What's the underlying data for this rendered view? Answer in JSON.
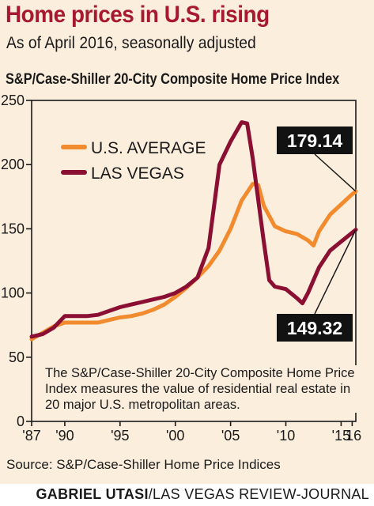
{
  "header": {
    "title": "Home prices in U.S. rising",
    "subtitle": "As of April 2016, seasonally adjusted",
    "index_title": "S&P/Case-Shiller 20-City Composite Home Price Index"
  },
  "note": "The S&P/Case-Shiller 20-City Composite Home Price Index measures the value of residential real estate in 20 major U.S. metropolitan areas.",
  "source": "Source: S&P/Case-Shiller Home Price Indices",
  "credit": {
    "name": "GABRIEL UTASI",
    "outlet": "/LAS VEGAS REVIEW-JOURNAL"
  },
  "chart_data": {
    "type": "line",
    "title": "S&P/Case-Shiller 20-City Composite Home Price Index",
    "xlabel": "",
    "ylabel": "",
    "ylim": [
      0,
      250
    ],
    "yticks": [
      0,
      50,
      100,
      150,
      200,
      250
    ],
    "xlim": [
      1987,
      2016.33
    ],
    "xticks": [
      {
        "value": 1987,
        "label": "'87"
      },
      {
        "value": 1990,
        "label": "'90"
      },
      {
        "value": 1995,
        "label": "'95"
      },
      {
        "value": 2000,
        "label": "'00"
      },
      {
        "value": 2005,
        "label": "'05"
      },
      {
        "value": 2010,
        "label": "'10"
      },
      {
        "value": 2015,
        "label": "'15"
      },
      {
        "value": 2016,
        "label": "'16"
      }
    ],
    "grid": false,
    "legend_position": "top-left",
    "series": [
      {
        "name": "U.S. AVERAGE",
        "color": "#f28a2e",
        "end_label": "179.14",
        "points": [
          [
            1987.0,
            64
          ],
          [
            1988.0,
            69
          ],
          [
            1989.0,
            74
          ],
          [
            1990.0,
            77
          ],
          [
            1991.0,
            77
          ],
          [
            1992.0,
            77
          ],
          [
            1993.0,
            77
          ],
          [
            1994.0,
            79
          ],
          [
            1995.0,
            81
          ],
          [
            1996.0,
            82
          ],
          [
            1997.0,
            84
          ],
          [
            1998.0,
            87
          ],
          [
            1999.0,
            91
          ],
          [
            2000.0,
            97
          ],
          [
            2001.0,
            104
          ],
          [
            2002.0,
            112
          ],
          [
            2003.0,
            121
          ],
          [
            2004.0,
            133
          ],
          [
            2005.0,
            150
          ],
          [
            2006.0,
            172
          ],
          [
            2007.0,
            185
          ],
          [
            2007.5,
            184
          ],
          [
            2008.0,
            168
          ],
          [
            2009.0,
            152
          ],
          [
            2010.0,
            148
          ],
          [
            2011.0,
            146
          ],
          [
            2012.0,
            141
          ],
          [
            2012.5,
            137
          ],
          [
            2013.0,
            148
          ],
          [
            2014.0,
            161
          ],
          [
            2015.0,
            169
          ],
          [
            2016.0,
            177
          ],
          [
            2016.33,
            179.14
          ]
        ]
      },
      {
        "name": "LAS VEGAS",
        "color": "#8b0f33",
        "end_label": "149.32",
        "points": [
          [
            1987.0,
            66
          ],
          [
            1988.0,
            68
          ],
          [
            1989.0,
            73
          ],
          [
            1990.0,
            82
          ],
          [
            1991.0,
            82
          ],
          [
            1992.0,
            82
          ],
          [
            1993.0,
            83
          ],
          [
            1994.0,
            86
          ],
          [
            1995.0,
            89
          ],
          [
            1996.0,
            91
          ],
          [
            1997.0,
            93
          ],
          [
            1998.0,
            95
          ],
          [
            1999.0,
            97
          ],
          [
            2000.0,
            100
          ],
          [
            2001.0,
            105
          ],
          [
            2002.0,
            112
          ],
          [
            2003.0,
            135
          ],
          [
            2004.0,
            200
          ],
          [
            2005.0,
            218
          ],
          [
            2006.0,
            233
          ],
          [
            2006.5,
            232
          ],
          [
            2007.0,
            205
          ],
          [
            2008.0,
            140
          ],
          [
            2008.5,
            110
          ],
          [
            2009.0,
            105
          ],
          [
            2010.0,
            103
          ],
          [
            2011.0,
            96
          ],
          [
            2011.5,
            92
          ],
          [
            2012.0,
            100
          ],
          [
            2013.0,
            120
          ],
          [
            2014.0,
            133
          ],
          [
            2015.0,
            140
          ],
          [
            2016.0,
            147
          ],
          [
            2016.33,
            149.32
          ]
        ]
      }
    ]
  }
}
